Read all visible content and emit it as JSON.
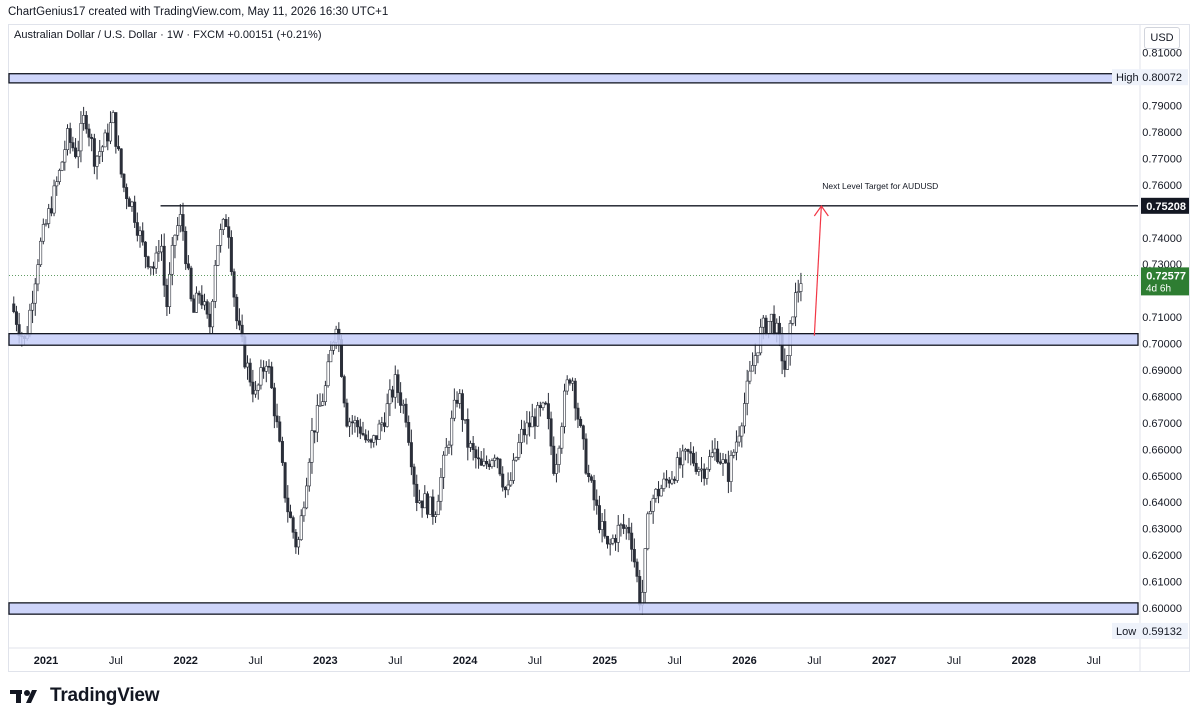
{
  "header": {
    "attribution": "ChartGenius17 created with TradingView.com, May 11, 2026 16:30 UTC+1"
  },
  "symbol_line": "Australian Dollar / U.S. Dollar · 1W · FXCM  +0.00151 (+0.21%)",
  "currency_button": "USD",
  "footer": {
    "brand": "TradingView"
  },
  "colors": {
    "up": "#26a69a",
    "down": "#ef5350",
    "candle": "#2a2e39",
    "zone_fill": "#c5cef9",
    "zone_border": "#131722",
    "last_price": "#2e7d32",
    "arrow": "#f23645",
    "grid_text": "#131722"
  },
  "chart_data": {
    "type": "candlestick",
    "symbol": "AUDUSD",
    "interval": "1W",
    "ylim": [
      0.586,
      0.811
    ],
    "y_ticks": [
      0.81,
      0.79,
      0.78,
      0.77,
      0.76,
      0.74,
      0.73,
      0.71,
      0.7,
      0.69,
      0.68,
      0.67,
      0.66,
      0.65,
      0.64,
      0.63,
      0.62,
      0.61,
      0.6
    ],
    "y_tick_labels": [
      "0.81000",
      "0.79000",
      "0.78000",
      "0.77000",
      "0.76000",
      "0.74000",
      "0.73000",
      "0.71000",
      "0.70000",
      "0.69000",
      "0.68000",
      "0.67000",
      "0.66000",
      "0.65000",
      "0.64000",
      "0.63000",
      "0.62000",
      "0.61000",
      "0.60000"
    ],
    "x_ticks": [
      {
        "label": "2021",
        "year": 2021.0,
        "bold": true
      },
      {
        "label": "Jul",
        "year": 2021.5,
        "bold": false
      },
      {
        "label": "2022",
        "year": 2022.0,
        "bold": true
      },
      {
        "label": "Jul",
        "year": 2022.5,
        "bold": false
      },
      {
        "label": "2023",
        "year": 2023.0,
        "bold": true
      },
      {
        "label": "Jul",
        "year": 2023.5,
        "bold": false
      },
      {
        "label": "2024",
        "year": 2024.0,
        "bold": true
      },
      {
        "label": "Jul",
        "year": 2024.5,
        "bold": false
      },
      {
        "label": "2025",
        "year": 2025.0,
        "bold": true
      },
      {
        "label": "Jul",
        "year": 2025.5,
        "bold": false
      },
      {
        "label": "2026",
        "year": 2026.0,
        "bold": true
      },
      {
        "label": "Jul",
        "year": 2026.5,
        "bold": false
      },
      {
        "label": "2027",
        "year": 2027.0,
        "bold": true
      },
      {
        "label": "Jul",
        "year": 2027.5,
        "bold": false
      },
      {
        "label": "2028",
        "year": 2028.0,
        "bold": true
      },
      {
        "label": "Jul",
        "year": 2028.5,
        "bold": false
      }
    ],
    "price_path": [
      [
        2020.75,
        0.715
      ],
      [
        2020.85,
        0.7
      ],
      [
        2020.95,
        0.735
      ],
      [
        2021.1,
        0.765
      ],
      [
        2021.15,
        0.778
      ],
      [
        2021.22,
        0.772
      ],
      [
        2021.28,
        0.787
      ],
      [
        2021.35,
        0.77
      ],
      [
        2021.42,
        0.776
      ],
      [
        2021.48,
        0.785
      ],
      [
        2021.55,
        0.76
      ],
      [
        2021.62,
        0.752
      ],
      [
        2021.7,
        0.735
      ],
      [
        2021.78,
        0.728
      ],
      [
        2021.82,
        0.742
      ],
      [
        2021.86,
        0.712
      ],
      [
        2021.92,
        0.741
      ],
      [
        2021.97,
        0.748
      ],
      [
        2022.05,
        0.71
      ],
      [
        2022.1,
        0.72
      ],
      [
        2022.17,
        0.705
      ],
      [
        2022.22,
        0.737
      ],
      [
        2022.3,
        0.748
      ],
      [
        2022.36,
        0.71
      ],
      [
        2022.42,
        0.695
      ],
      [
        2022.5,
        0.68
      ],
      [
        2022.58,
        0.695
      ],
      [
        2022.65,
        0.67
      ],
      [
        2022.72,
        0.64
      ],
      [
        2022.8,
        0.622
      ],
      [
        2022.9,
        0.665
      ],
      [
        2023.0,
        0.683
      ],
      [
        2023.08,
        0.71
      ],
      [
        2023.15,
        0.672
      ],
      [
        2023.25,
        0.668
      ],
      [
        2023.32,
        0.66
      ],
      [
        2023.42,
        0.672
      ],
      [
        2023.5,
        0.685
      ],
      [
        2023.58,
        0.673
      ],
      [
        2023.65,
        0.642
      ],
      [
        2023.72,
        0.64
      ],
      [
        2023.78,
        0.636
      ],
      [
        2023.86,
        0.658
      ],
      [
        2023.95,
        0.682
      ],
      [
        2024.02,
        0.662
      ],
      [
        2024.12,
        0.652
      ],
      [
        2024.22,
        0.66
      ],
      [
        2024.3,
        0.642
      ],
      [
        2024.4,
        0.665
      ],
      [
        2024.5,
        0.672
      ],
      [
        2024.58,
        0.675
      ],
      [
        2024.64,
        0.652
      ],
      [
        2024.72,
        0.682
      ],
      [
        2024.76,
        0.69
      ],
      [
        2024.82,
        0.668
      ],
      [
        2024.88,
        0.65
      ],
      [
        2024.95,
        0.635
      ],
      [
        2025.02,
        0.622
      ],
      [
        2025.1,
        0.63
      ],
      [
        2025.18,
        0.63
      ],
      [
        2025.26,
        0.6
      ],
      [
        2025.32,
        0.64
      ],
      [
        2025.4,
        0.645
      ],
      [
        2025.5,
        0.652
      ],
      [
        2025.6,
        0.658
      ],
      [
        2025.7,
        0.652
      ],
      [
        2025.8,
        0.66
      ],
      [
        2025.88,
        0.65
      ],
      [
        2025.95,
        0.665
      ],
      [
        2026.05,
        0.69
      ],
      [
        2026.12,
        0.705
      ],
      [
        2026.2,
        0.71
      ],
      [
        2026.25,
        0.7
      ],
      [
        2026.3,
        0.688
      ],
      [
        2026.34,
        0.712
      ],
      [
        2026.38,
        0.72
      ],
      [
        2026.41,
        0.72577
      ]
    ],
    "zones": [
      {
        "name": "high-zone",
        "top": 0.8009,
        "bottom": 0.7997
      },
      {
        "name": "mid-zone",
        "top": 0.7026,
        "bottom": 0.7005
      },
      {
        "name": "low-zone",
        "top": 0.6008,
        "bottom": 0.5988
      }
    ],
    "target_line": {
      "value": 0.75208,
      "from_year": 2021.82,
      "label": "0.75208"
    },
    "annotation": {
      "text": "Next Level Target for AUDUSD",
      "x_year": 2026.9,
      "y": 0.7585
    },
    "arrow": {
      "from_year": 2026.5,
      "from_y": 0.703,
      "to_year": 2026.55,
      "to_y": 0.752
    },
    "last_price": {
      "value": 0.72577,
      "label": "0.72577",
      "countdown": "4d 6h"
    },
    "high": {
      "label": "High",
      "value_text": "0.80072",
      "value": 0.80072
    },
    "low": {
      "label": "Low",
      "value_text": "0.59132",
      "value": 0.59132
    }
  }
}
